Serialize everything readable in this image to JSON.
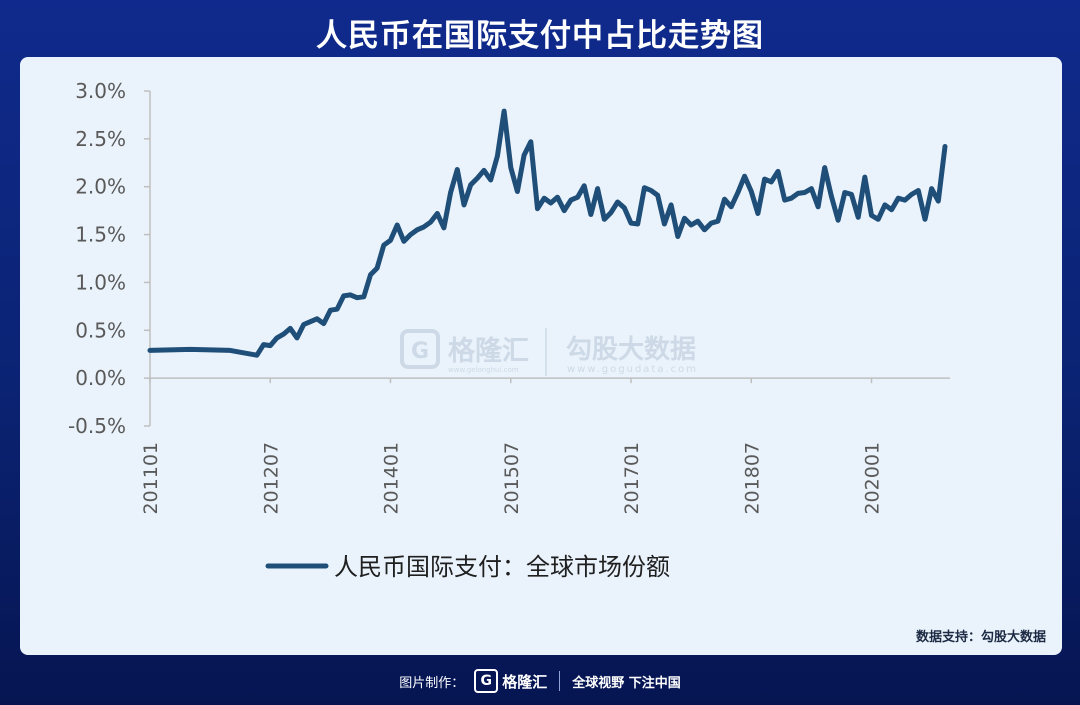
{
  "title": "人民币在国际支付中占比走势图",
  "source": "数据支持：勾股大数据",
  "footer": {
    "made_by": "图片制作：",
    "logo_text": "格隆汇",
    "slogan": "全球视野 下注中国"
  },
  "watermark": {
    "left_name": "格隆汇",
    "left_url": "www.gelonghui.com",
    "right_name": "勾股大数据",
    "right_url": "www.gogudata.com"
  },
  "colors": {
    "line": "#1f4e79",
    "axis": "#bfbfbf",
    "tick_text": "#595959"
  },
  "chart_data": {
    "type": "line",
    "title": "",
    "xlabel": "",
    "ylabel": "",
    "ylim": [
      -0.5,
      3.0
    ],
    "y_ticks": [
      "-0.5%",
      "0.0%",
      "0.5%",
      "1.0%",
      "1.5%",
      "2.0%",
      "2.5%",
      "3.0%"
    ],
    "y_tick_values": [
      -0.5,
      0.0,
      0.5,
      1.0,
      1.5,
      2.0,
      2.5,
      3.0
    ],
    "x_ticks": [
      "201101",
      "201207",
      "201401",
      "201507",
      "201701",
      "201807",
      "202001"
    ],
    "legend": "bottom-center",
    "grid": false,
    "series": [
      {
        "name": "人民币国际支付：全球市场份额",
        "x": [
          "201101",
          "201107",
          "201201",
          "201205",
          "201206",
          "201207",
          "201208",
          "201209",
          "201210",
          "201211",
          "201212",
          "201301",
          "201302",
          "201303",
          "201304",
          "201305",
          "201306",
          "201307",
          "201308",
          "201309",
          "201310",
          "201311",
          "201312",
          "201401",
          "201402",
          "201403",
          "201404",
          "201405",
          "201406",
          "201407",
          "201408",
          "201409",
          "201410",
          "201411",
          "201412",
          "201501",
          "201502",
          "201503",
          "201504",
          "201505",
          "201506",
          "201507",
          "201508",
          "201509",
          "201510",
          "201511",
          "201512",
          "201601",
          "201602",
          "201603",
          "201604",
          "201605",
          "201606",
          "201607",
          "201608",
          "201609",
          "201610",
          "201611",
          "201612",
          "201701",
          "201702",
          "201703",
          "201704",
          "201705",
          "201706",
          "201707",
          "201708",
          "201709",
          "201710",
          "201711",
          "201712",
          "201801",
          "201802",
          "201803",
          "201804",
          "201805",
          "201806",
          "201807",
          "201808",
          "201809",
          "201810",
          "201811",
          "201812",
          "201901",
          "201902",
          "201903",
          "201904",
          "201905",
          "201906",
          "201907",
          "201908",
          "201909",
          "201910",
          "201911",
          "201912",
          "202001",
          "202002",
          "202003",
          "202004",
          "202005",
          "202006",
          "202007",
          "202008",
          "202009",
          "202010",
          "202011",
          "202012"
        ],
        "values": [
          0.29,
          0.3,
          0.29,
          0.24,
          0.35,
          0.34,
          0.42,
          0.46,
          0.52,
          0.42,
          0.56,
          0.59,
          0.62,
          0.57,
          0.71,
          0.72,
          0.86,
          0.87,
          0.84,
          0.85,
          1.08,
          1.15,
          1.39,
          1.44,
          1.6,
          1.43,
          1.5,
          1.55,
          1.58,
          1.63,
          1.72,
          1.57,
          1.94,
          2.18,
          1.81,
          2.02,
          2.09,
          2.17,
          2.07,
          2.32,
          2.79,
          2.2,
          1.95,
          2.33,
          2.47,
          1.77,
          1.88,
          1.83,
          1.89,
          1.75,
          1.86,
          1.89,
          2.01,
          1.71,
          1.98,
          1.66,
          1.73,
          1.84,
          1.78,
          1.62,
          1.61,
          1.99,
          1.96,
          1.91,
          1.61,
          1.81,
          1.48,
          1.67,
          1.6,
          1.64,
          1.55,
          1.62,
          1.64,
          1.87,
          1.79,
          1.94,
          2.11,
          1.95,
          1.72,
          2.08,
          2.05,
          2.16,
          1.86,
          1.88,
          1.93,
          1.94,
          1.98,
          1.79,
          2.2,
          1.9,
          1.65,
          1.94,
          1.92,
          1.68,
          2.1,
          1.7,
          1.66,
          1.81,
          1.76,
          1.88,
          1.86,
          1.92,
          1.96,
          1.66,
          1.98,
          1.85,
          2.42
        ]
      }
    ]
  }
}
